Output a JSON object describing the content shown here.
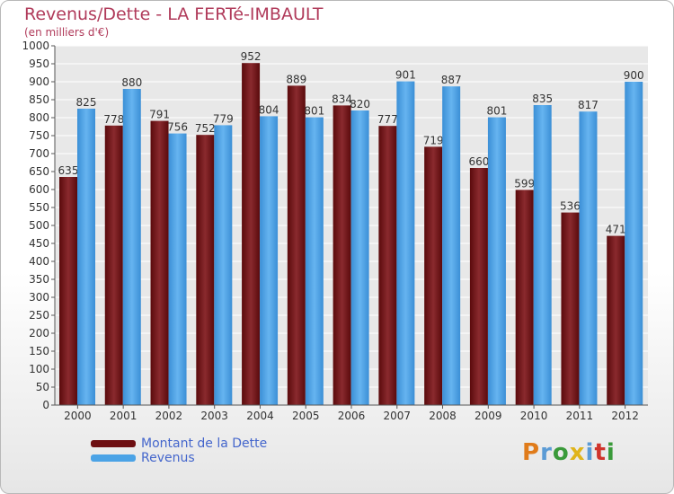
{
  "header": {
    "title": "Revenus/Dette - LA FERTé-IMBAULT",
    "subtitle": "(en milliers d'€)"
  },
  "legend": {
    "items": [
      {
        "label": "Montant de la Dette",
        "color": "#6e0f12"
      },
      {
        "label": "Revenus",
        "color": "#4ba3e6"
      }
    ]
  },
  "logo": {
    "text": "Proxiti",
    "letters": [
      "P",
      "r",
      "o",
      "x",
      "i",
      "t",
      "i"
    ],
    "colors": [
      "#e07b1a",
      "#5b9bd5",
      "#3a9a3a",
      "#e0b41a",
      "#5b9bd5",
      "#d0342c",
      "#3a9a3a"
    ]
  },
  "chart_data": {
    "type": "bar",
    "categories": [
      "2000",
      "2001",
      "2002",
      "2003",
      "2004",
      "2005",
      "2006",
      "2007",
      "2008",
      "2009",
      "2010",
      "2011",
      "2012"
    ],
    "series": [
      {
        "name": "Montant de la Dette",
        "values": [
          635,
          778,
          791,
          752,
          952,
          889,
          834,
          777,
          719,
          660,
          599,
          536,
          471
        ],
        "color": "#6e0f12"
      },
      {
        "name": "Revenus",
        "values": [
          825,
          880,
          756,
          779,
          804,
          801,
          820,
          901,
          887,
          801,
          835,
          817,
          900
        ],
        "color": "#4ba3e6"
      }
    ],
    "ylim": [
      0,
      1000
    ],
    "yticks": [
      0,
      50,
      100,
      150,
      200,
      250,
      300,
      350,
      400,
      450,
      500,
      550,
      600,
      650,
      700,
      750,
      800,
      850,
      900,
      950,
      1000
    ],
    "grid": true,
    "title": "Revenus/Dette - LA FERTé-IMBAULT",
    "ylabel": "(en milliers d'€)",
    "xlabel": ""
  }
}
